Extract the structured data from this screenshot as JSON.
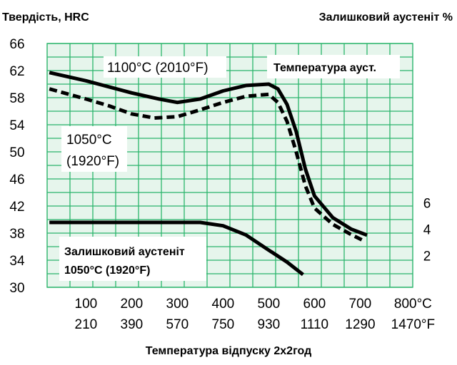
{
  "chart_data": {
    "type": "line",
    "title_left": "Твердість, HRC",
    "title_right": "Залишковий аустеніт %",
    "xlabel": "Температура відпуску 2х2год",
    "x_ticks_c": [
      "100",
      "200",
      "300",
      "400",
      "500",
      "600",
      "700",
      "800°C"
    ],
    "x_ticks_f": [
      "210",
      "390",
      "570",
      "750",
      "930",
      "1110",
      "1290",
      "1470°F"
    ],
    "x_tick_values": [
      100,
      200,
      300,
      400,
      500,
      600,
      700,
      800
    ],
    "xlim": [
      15,
      815
    ],
    "y_ticks": [
      "66",
      "62",
      "58",
      "54",
      "50",
      "46",
      "42",
      "38",
      "34",
      "30"
    ],
    "ylim": [
      30,
      66
    ],
    "y2_ticks": [
      "6",
      "4",
      "2"
    ],
    "y2_tick_values": [
      6,
      4,
      2
    ],
    "y2_map": {
      "value_at_0": 30.8,
      "hrc_per_unit": 1.95
    },
    "grid": true,
    "grid_color": "#2bb56b",
    "background_color": "#e6f5ec",
    "legend_box_label": "Температура ауст.",
    "series": [
      {
        "name": "1100°C (2010°F)",
        "axis": "left",
        "style": "solid",
        "x": [
          20,
          100,
          200,
          260,
          300,
          350,
          400,
          450,
          500,
          520,
          540,
          560,
          580,
          600,
          640,
          680,
          715
        ],
        "y": [
          61.7,
          60.5,
          58.7,
          57.8,
          57.3,
          57.8,
          59.0,
          59.8,
          60.0,
          59.3,
          57.0,
          53.0,
          47.5,
          43.5,
          40.3,
          38.6,
          37.7
        ]
      },
      {
        "name": "1050°C (1920°F)",
        "axis": "left",
        "style": "dashed",
        "x": [
          20,
          100,
          150,
          200,
          250,
          300,
          350,
          400,
          450,
          500,
          520,
          540,
          560,
          580,
          600,
          640,
          680,
          710
        ],
        "y": [
          59.3,
          57.8,
          56.8,
          55.6,
          55.0,
          55.2,
          56.2,
          57.3,
          58.2,
          58.5,
          57.3,
          54.5,
          50.0,
          45.0,
          41.7,
          39.3,
          37.8,
          36.8
        ]
      },
      {
        "name": "Залишковий аустеніт\n1050°C (1920°F)",
        "axis": "right",
        "style": "solid",
        "x": [
          20,
          100,
          200,
          300,
          350,
          400,
          450,
          500,
          540,
          575
        ],
        "y": [
          4.5,
          4.5,
          4.5,
          4.5,
          4.5,
          4.25,
          3.55,
          2.4,
          1.5,
          0.55
        ]
      }
    ],
    "annotations": {
      "label_1100": "1100°C (2010°F)",
      "label_1050_line1": "1050°C",
      "label_1050_line2": "(1920°F)",
      "label_ra_line1": "Залишковий аустеніт",
      "label_ra_line2": "1050°C (1920°F)"
    }
  }
}
